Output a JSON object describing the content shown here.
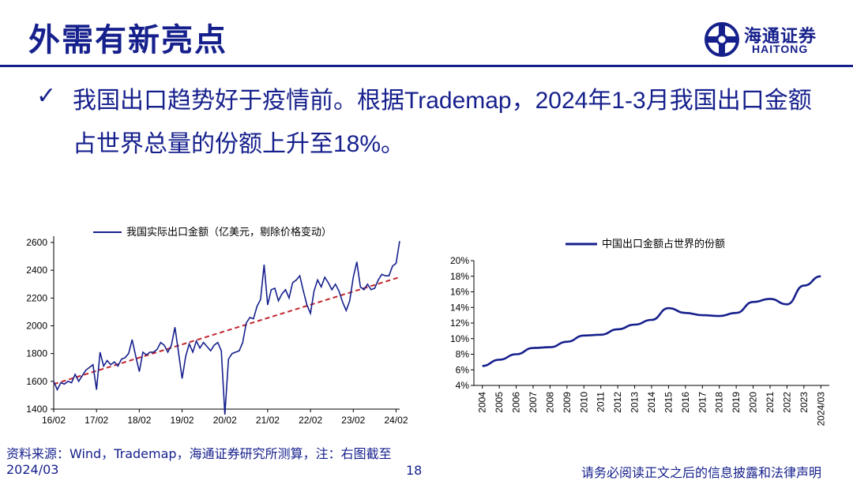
{
  "header": {
    "title": "外需有新亮点",
    "logo_cn": "海通证券",
    "logo_en": "HAITONG"
  },
  "bullet": {
    "icon": "checkmark-icon",
    "text": "我国出口趋势好于疫情前。根据Trademap，2024年1-3月我国出口金额占世界总量的份额上升至18%。"
  },
  "colors": {
    "brand": "#16208c",
    "trend_line": "#c0262d"
  },
  "chart_data": [
    {
      "type": "line",
      "title": "",
      "legend": "我国实际出口金额（亿美元，剔除价格变动）",
      "legend_position": "top",
      "xlabel": "",
      "ylabel": "",
      "ylim": [
        1400,
        2600
      ],
      "yticks": [
        1400,
        1600,
        1800,
        2000,
        2200,
        2400,
        2600
      ],
      "xtick_labels": [
        "16/02",
        "17/02",
        "18/02",
        "19/02",
        "20/02",
        "21/02",
        "22/02",
        "23/02",
        "24/02"
      ],
      "grid": false,
      "series": [
        {
          "name": "我国实际出口金额（亿美元，剔除价格变动）",
          "x": [
            "16/02",
            "16/03",
            "16/04",
            "16/05",
            "16/06",
            "16/07",
            "16/08",
            "16/09",
            "16/10",
            "16/11",
            "16/12",
            "17/01",
            "17/02",
            "17/03",
            "17/04",
            "17/05",
            "17/06",
            "17/07",
            "17/08",
            "17/09",
            "17/10",
            "17/11",
            "17/12",
            "18/01",
            "18/02",
            "18/03",
            "18/04",
            "18/05",
            "18/06",
            "18/07",
            "18/08",
            "18/09",
            "18/10",
            "18/11",
            "18/12",
            "19/01",
            "19/02",
            "19/03",
            "19/04",
            "19/05",
            "19/06",
            "19/07",
            "19/08",
            "19/09",
            "19/10",
            "19/11",
            "19/12",
            "20/01",
            "20/02",
            "20/03",
            "20/04",
            "20/05",
            "20/06",
            "20/07",
            "20/08",
            "20/09",
            "20/10",
            "20/11",
            "20/12",
            "21/01",
            "21/02",
            "21/03",
            "21/04",
            "21/05",
            "21/06",
            "21/07",
            "21/08",
            "21/09",
            "21/10",
            "21/11",
            "21/12",
            "22/01",
            "22/02",
            "22/03",
            "22/04",
            "22/05",
            "22/06",
            "22/07",
            "22/08",
            "22/09",
            "22/10",
            "22/11",
            "22/12",
            "23/01",
            "23/02",
            "23/03",
            "23/04",
            "23/05",
            "23/06",
            "23/07",
            "23/08",
            "23/09",
            "23/10",
            "23/11",
            "23/12",
            "24/01",
            "24/02",
            "24/03"
          ],
          "values": [
            1600,
            1540,
            1590,
            1580,
            1600,
            1590,
            1650,
            1600,
            1640,
            1680,
            1700,
            1720,
            1540,
            1810,
            1710,
            1750,
            1720,
            1740,
            1710,
            1760,
            1770,
            1800,
            1900,
            1780,
            1670,
            1810,
            1790,
            1810,
            1810,
            1830,
            1880,
            1860,
            1810,
            1860,
            1990,
            1810,
            1620,
            1780,
            1870,
            1810,
            1890,
            1840,
            1880,
            1850,
            1820,
            1860,
            1880,
            1820,
            1360,
            1760,
            1800,
            1810,
            1820,
            1880,
            2020,
            2060,
            2050,
            2140,
            2190,
            2440,
            2150,
            2260,
            2270,
            2180,
            2230,
            2260,
            2200,
            2310,
            2330,
            2360,
            2250,
            2150,
            2090,
            2250,
            2330,
            2280,
            2350,
            2310,
            2260,
            2300,
            2250,
            2170,
            2110,
            2180,
            2350,
            2460,
            2280,
            2260,
            2300,
            2260,
            2270,
            2330,
            2370,
            2360,
            2360,
            2430,
            2450,
            2610
          ]
        },
        {
          "name": "",
          "style": "dashed trend",
          "x": [
            "16/02",
            "24/03"
          ],
          "values": [
            1580,
            2350
          ]
        }
      ]
    },
    {
      "type": "line",
      "title": "",
      "legend": "中国出口金额占世界的份额",
      "legend_position": "top",
      "xlabel": "",
      "ylabel": "",
      "ylim": [
        4,
        20
      ],
      "ytick_labels": [
        "4%",
        "6%",
        "8%",
        "10%",
        "12%",
        "14%",
        "16%",
        "18%",
        "20%"
      ],
      "categories": [
        "2004",
        "2005",
        "2006",
        "2007",
        "2008",
        "2009",
        "2010",
        "2011",
        "2012",
        "2013",
        "2014",
        "2015",
        "2016",
        "2017",
        "2018",
        "2019",
        "2020",
        "2021",
        "2022",
        "2023",
        "2024/03"
      ],
      "grid": false,
      "series": [
        {
          "name": "中国出口金额占世界的份额",
          "values": [
            6.5,
            7.3,
            8.0,
            8.8,
            8.9,
            9.6,
            10.4,
            10.5,
            11.2,
            11.8,
            12.4,
            13.9,
            13.3,
            13.0,
            12.9,
            13.3,
            14.7,
            15.1,
            14.4,
            16.8,
            18.0
          ]
        }
      ]
    }
  ],
  "footer": {
    "source": "资料来源：Wind，Trademap，海通证券研究所测算，注：右图截至2024/03",
    "page_number": "18",
    "disclaimer": "请务必阅读正文之后的信息披露和法律声明"
  }
}
